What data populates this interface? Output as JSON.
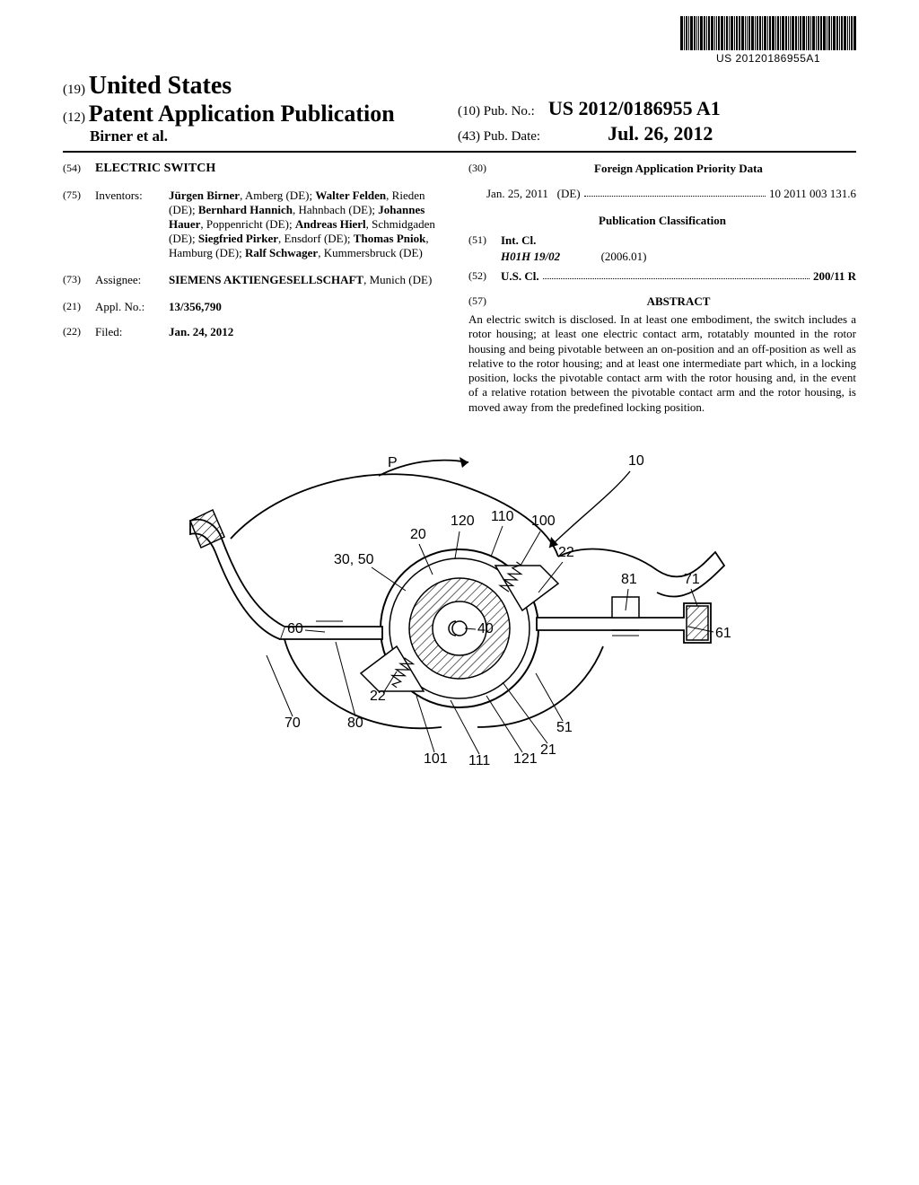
{
  "barcode": {
    "text": "US 20120186955A1"
  },
  "header": {
    "country_code": "(19)",
    "country": "United States",
    "pub_code": "(12)",
    "pub_type": "Patent Application Publication",
    "authors": "Birner et al.",
    "pubno_code": "(10)",
    "pubno_label": "Pub. No.:",
    "pubno": "US 2012/0186955 A1",
    "pubdate_code": "(43)",
    "pubdate_label": "Pub. Date:",
    "pubdate": "Jul. 26, 2012"
  },
  "left": {
    "title_code": "(54)",
    "title": "ELECTRIC SWITCH",
    "inventors_code": "(75)",
    "inventors_label": "Inventors:",
    "inventors": [
      {
        "name": "Jürgen Birner",
        "loc": ", Amberg (DE); "
      },
      {
        "name": "Walter Felden",
        "loc": ", Rieden (DE); "
      },
      {
        "name": "Bernhard Hannich",
        "loc": ", Hahnbach (DE); "
      },
      {
        "name": "Johannes Hauer",
        "loc": ", Poppenricht (DE); "
      },
      {
        "name": "Andreas Hierl",
        "loc": ", Schmidgaden (DE); "
      },
      {
        "name": "Siegfried Pirker",
        "loc": ", Ensdorf (DE); "
      },
      {
        "name": "Thomas Pniok",
        "loc": ", Hamburg (DE); "
      },
      {
        "name": "Ralf Schwager",
        "loc": ", Kummersbruck (DE)"
      }
    ],
    "assignee_code": "(73)",
    "assignee_label": "Assignee:",
    "assignee_name": "SIEMENS AKTIENGESELLSCHAFT",
    "assignee_loc": ", Munich (DE)",
    "applno_code": "(21)",
    "applno_label": "Appl. No.:",
    "applno": "13/356,790",
    "filed_code": "(22)",
    "filed_label": "Filed:",
    "filed": "Jan. 24, 2012"
  },
  "right": {
    "foreign_code": "(30)",
    "foreign_heading": "Foreign Application Priority Data",
    "foreign_date": "Jan. 25, 2011",
    "foreign_cc": "(DE)",
    "foreign_no": "10 2011 003 131.6",
    "pubclass_heading": "Publication Classification",
    "intcl_code": "(51)",
    "intcl_label": "Int. Cl.",
    "intcl_value": "H01H 19/02",
    "intcl_year": "(2006.01)",
    "uscl_code": "(52)",
    "uscl_label": "U.S. Cl.",
    "uscl_value": "200/11 R",
    "abstract_code": "(57)",
    "abstract_heading": "ABSTRACT",
    "abstract": "An electric switch is disclosed. In at least one embodiment, the switch includes a rotor housing; at least one electric contact arm, rotatably mounted in the rotor housing and being pivotable between an on-position and an off-position as well as relative to the rotor housing; and at least one intermediate part which, in a locking position, locks the pivotable contact arm with the rotor housing and, in the event of a relative rotation between the pivotable contact arm and the rotor housing, is moved away from the predefined locking position."
  },
  "figure": {
    "labels": {
      "P": "P",
      "10": "10",
      "120": "120",
      "110": "110",
      "100": "100",
      "20": "20",
      "22a": "22",
      "22b": "22",
      "30_50": "30, 50",
      "81": "81",
      "71": "71",
      "60": "60",
      "61": "61",
      "40": "40",
      "70": "70",
      "80": "80",
      "51": "51",
      "21": "21",
      "101": "101",
      "111": "111",
      "121": "121"
    },
    "stroke": "#000000",
    "stroke_width": 1.6,
    "hatch_spacing": 6
  }
}
